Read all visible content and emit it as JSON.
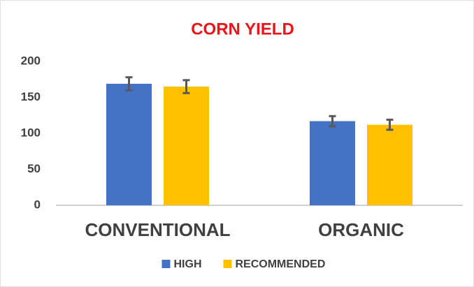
{
  "chart_data": {
    "type": "bar",
    "title": "CORN YIELD",
    "categories": [
      "CONVENTIONAL",
      "ORGANIC"
    ],
    "series": [
      {
        "name": "HIGH",
        "color": "#4472c4",
        "values": [
          169,
          117
        ],
        "errors": [
          9,
          7
        ]
      },
      {
        "name": "RECOMMENDED",
        "color": "#ffc000",
        "values": [
          165,
          112
        ],
        "errors": [
          9,
          7
        ]
      }
    ],
    "ylim": [
      0,
      200
    ],
    "yticks": [
      0,
      50,
      100,
      150,
      200
    ],
    "grid": false
  }
}
